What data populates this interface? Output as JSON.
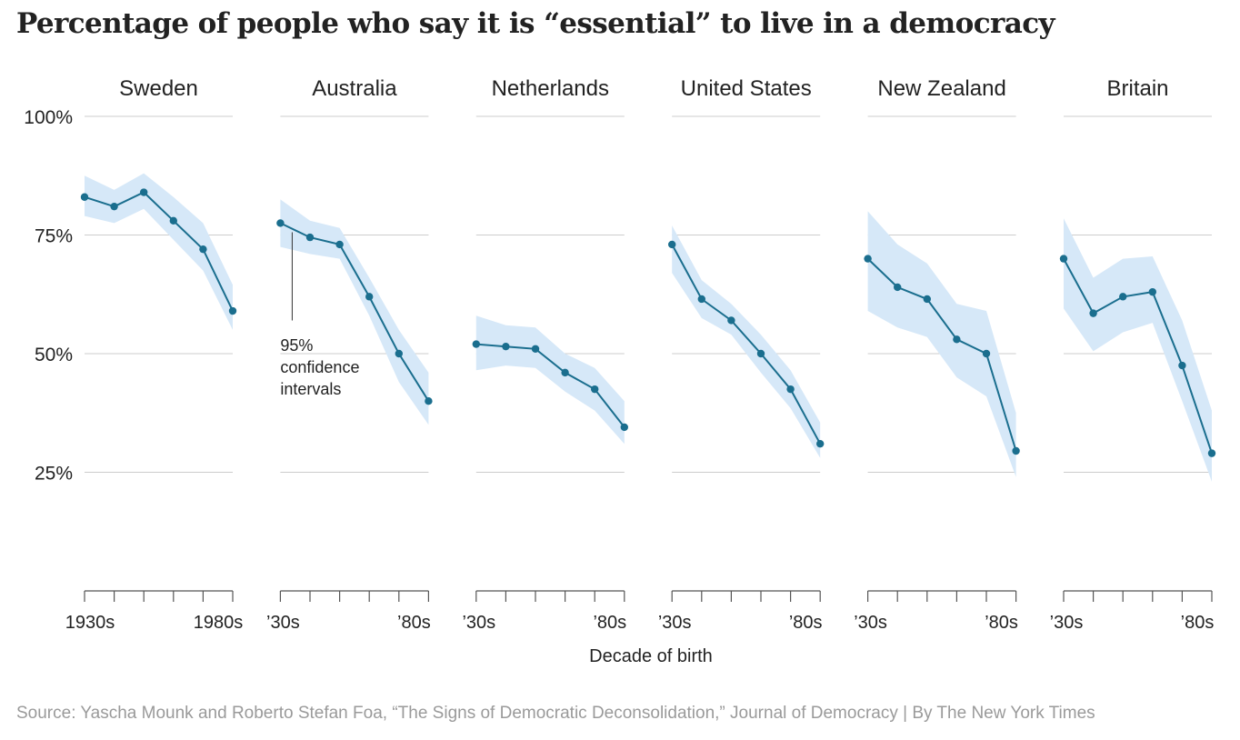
{
  "title": "Percentage of people who say it is “essential” to live in a democracy",
  "source": "Source: Yascha Mounk and Roberto Stefan Foa, “The Signs of Democratic Deconsolidation,” Journal of Democracy | By The New York Times",
  "chart_data": {
    "type": "line",
    "xlabel": "Decade of birth",
    "ylabel": "",
    "ylim": [
      0,
      100
    ],
    "y_ticks": [
      100,
      75,
      50,
      25
    ],
    "y_tick_labels": [
      "100%",
      "75%",
      "50%",
      "25%"
    ],
    "x": [
      1930,
      1940,
      1950,
      1960,
      1970,
      1980
    ],
    "grid": true,
    "colors": {
      "line": "#1a6e8e",
      "band": "#d6e8f8",
      "grid": "#cccccc"
    },
    "annotation": {
      "panel": "Australia",
      "x": 1930,
      "y": 75,
      "text": [
        "95%",
        "confidence",
        "intervals"
      ]
    },
    "panels": [
      {
        "name": "Sweden",
        "x_tick_labels": [
          "1930s",
          "1980s"
        ],
        "values": [
          83,
          81,
          84,
          78,
          72,
          59
        ],
        "lower": [
          79,
          77.5,
          80.5,
          74,
          67.5,
          55
        ],
        "upper": [
          87.5,
          84.5,
          88,
          83,
          77.5,
          64.5
        ]
      },
      {
        "name": "Australia",
        "x_tick_labels": [
          "’30s",
          "’80s"
        ],
        "values": [
          77.5,
          74.5,
          73,
          62,
          50,
          40
        ],
        "lower": [
          72.5,
          71,
          70,
          58,
          44,
          35
        ],
        "upper": [
          82.5,
          78,
          76.5,
          66,
          55,
          46
        ]
      },
      {
        "name": "Netherlands",
        "x_tick_labels": [
          "’30s",
          "’80s"
        ],
        "values": [
          52,
          51.5,
          51,
          46,
          42.5,
          34.5
        ],
        "lower": [
          46.5,
          47.5,
          47,
          42,
          38,
          31
        ],
        "upper": [
          58,
          56,
          55.5,
          50,
          47,
          40
        ]
      },
      {
        "name": "United States",
        "x_tick_labels": [
          "’30s",
          "’80s"
        ],
        "values": [
          73,
          61.5,
          57,
          50,
          42.5,
          31
        ],
        "lower": [
          67,
          57.5,
          54,
          46,
          38.5,
          28
        ],
        "upper": [
          77,
          65.5,
          60.5,
          54,
          46.5,
          35.5
        ]
      },
      {
        "name": "New Zealand",
        "x_tick_labels": [
          "’30s",
          "’80s"
        ],
        "values": [
          70,
          64,
          61.5,
          53,
          50,
          29.5
        ],
        "lower": [
          59,
          55.5,
          53.5,
          45,
          41,
          24
        ],
        "upper": [
          80,
          73,
          69,
          60.5,
          59,
          37.5
        ]
      },
      {
        "name": "Britain",
        "x_tick_labels": [
          "’30s",
          "’80s"
        ],
        "values": [
          70,
          58.5,
          62,
          63,
          47.5,
          29
        ],
        "lower": [
          59.5,
          50.5,
          54.5,
          56.5,
          40,
          23
        ],
        "upper": [
          78.5,
          66,
          70,
          70.5,
          57,
          38
        ]
      }
    ]
  }
}
